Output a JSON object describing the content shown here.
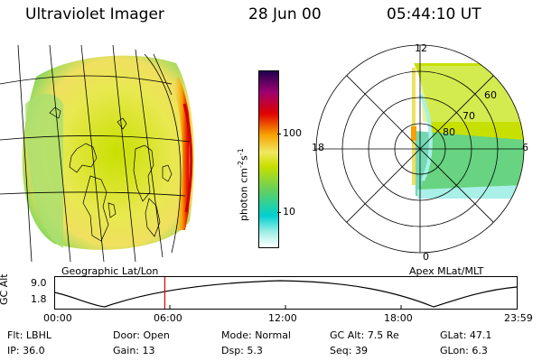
{
  "header": {
    "title": "Ultraviolet Imager",
    "date": "28 Jun 00",
    "time": "05:44:10 UT"
  },
  "geo_panel": {
    "label": "Geographic Lat/Lon"
  },
  "polar_panel": {
    "label": "Apex MLat/MLT",
    "mlt_labels": {
      "top": "12",
      "bottom": "0",
      "left": "18",
      "right": "6"
    },
    "lat_labels": [
      "60",
      "70",
      "80"
    ]
  },
  "colorbar": {
    "unit_label": "photon cm",
    "unit_exp1": "-2",
    "unit_mid": "s",
    "unit_exp2": "-1",
    "ticks": [
      "100",
      "10"
    ]
  },
  "timeline": {
    "ylabel": "GC Alt",
    "yticks": [
      "9.0",
      "1.8"
    ],
    "xticks": [
      "00:00",
      "06:00",
      "12:00",
      "18:00",
      "23:59"
    ],
    "marker_hours": 5.74
  },
  "footer": {
    "rows": [
      [
        {
          "k": "Flt:",
          "v": "LBHL"
        },
        {
          "k": "Door:",
          "v": "Open"
        },
        {
          "k": "Mode:",
          "v": "Normal"
        },
        {
          "k": "GC Alt:",
          "v": "7.5 Re"
        },
        {
          "k": "GLat:",
          "v": "47.1"
        }
      ],
      [
        {
          "k": "IP:",
          "v": "36.0"
        },
        {
          "k": "Gain:",
          "v": "13"
        },
        {
          "k": "Dsp:",
          "v": "5.3"
        },
        {
          "k": "Seq:",
          "v": "39"
        },
        {
          "k": "GLon:",
          "v": "6.3"
        }
      ]
    ]
  },
  "colors": {
    "colorbar_stops": [
      "#ffffff",
      "#a8f0e8",
      "#00d0d0",
      "#60d060",
      "#c8e000",
      "#f0e860",
      "#f8a000",
      "#e00000",
      "#a00070",
      "#200050"
    ]
  }
}
